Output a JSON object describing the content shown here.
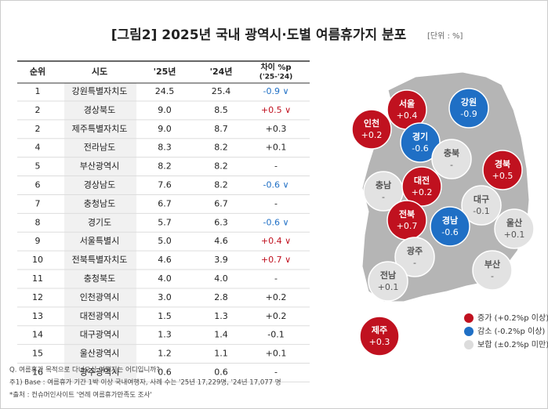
{
  "title": "[그림2] 2025년 국내 광역시·도별 여름휴가지 분포",
  "unit": "[단위 : %]",
  "table": {
    "header": [
      "순위",
      "시도",
      "'25년",
      "'24년"
    ],
    "diff_header": [
      "차이 %p",
      "('25-'24)"
    ],
    "rows": [
      [
        1,
        "강원특별자치도",
        "24.5",
        "25.4",
        "-0.9 ∨"
      ],
      [
        2,
        "경상북도",
        "9.0",
        "8.5",
        "+0.5 ∨"
      ],
      [
        2,
        "제주특별자치도",
        "9.0",
        "8.7",
        "+0.3"
      ],
      [
        4,
        "전라남도",
        "8.3",
        "8.2",
        "+0.1"
      ],
      [
        5,
        "부산광역시",
        "8.2",
        "8.2",
        "-"
      ],
      [
        6,
        "경상남도",
        "7.6",
        "8.2",
        "-0.6 ∨"
      ],
      [
        7,
        "충청남도",
        "6.7",
        "6.7",
        "-"
      ],
      [
        8,
        "경기도",
        "5.7",
        "6.3",
        "-0.6 ∨"
      ],
      [
        9,
        "서울특별시",
        "5.0",
        "4.6",
        "+0.4 ∨"
      ],
      [
        10,
        "전북특별자치도",
        "4.6",
        "3.9",
        "+0.7 ∨"
      ],
      [
        11,
        "충청북도",
        "4.0",
        "4.0",
        "-"
      ],
      [
        12,
        "인천광역시",
        "3.0",
        "2.8",
        "+0.2"
      ],
      [
        13,
        "대전광역시",
        "1.5",
        "1.3",
        "+0.2"
      ],
      [
        14,
        "대구광역시",
        "1.3",
        "1.4",
        "-0.1"
      ],
      [
        15,
        "울산광역시",
        "1.2",
        "1.1",
        "+0.1"
      ],
      [
        16,
        "광주광역시",
        "0.6",
        "0.6",
        "-"
      ]
    ],
    "diff_colors": [
      "#1f6fc5",
      "#c0111f",
      "#222222",
      "#222222",
      "#222222",
      "#1f6fc5",
      "#222222",
      "#1f6fc5",
      "#c0111f",
      "#c0111f",
      "#222222",
      "#222222",
      "#222222",
      "#222222",
      "#222222",
      "#222222"
    ]
  },
  "map": {
    "bubbles": [
      {
        "name": "서울",
        "value": "+0.4",
        "color": "#c0111f",
        "text_color": "#ffffff"
      },
      {
        "name": "강원",
        "value": "-0.9",
        "color": "#1f6fc5",
        "text_color": "#ffffff"
      },
      {
        "name": "인천",
        "value": "+0.2",
        "color": "#c0111f",
        "text_color": "#ffffff"
      },
      {
        "name": "경기",
        "value": "-0.6",
        "color": "#1f6fc5",
        "text_color": "#ffffff"
      },
      {
        "name": "충북",
        "value": "-",
        "color": "#e2e2e2",
        "text_color": "#555555"
      },
      {
        "name": "경북",
        "value": "+0.5",
        "color": "#c0111f",
        "text_color": "#ffffff"
      },
      {
        "name": "충남",
        "value": "-",
        "color": "#e2e2e2",
        "text_color": "#555555"
      },
      {
        "name": "대전",
        "value": "+0.2",
        "color": "#c0111f",
        "text_color": "#ffffff"
      },
      {
        "name": "대구",
        "value": "-0.1",
        "color": "#e2e2e2",
        "text_color": "#555555"
      },
      {
        "name": "전북",
        "value": "+0.7",
        "color": "#c0111f",
        "text_color": "#ffffff"
      },
      {
        "name": "경남",
        "value": "-0.6",
        "color": "#1f6fc5",
        "text_color": "#ffffff"
      },
      {
        "name": "울산",
        "value": "+0.1",
        "color": "#e2e2e2",
        "text_color": "#555555"
      },
      {
        "name": "광주",
        "value": "-",
        "color": "#e2e2e2",
        "text_color": "#555555"
      },
      {
        "name": "부산",
        "value": "-",
        "color": "#e2e2e2",
        "text_color": "#555555"
      },
      {
        "name": "전남",
        "value": "+0.1",
        "color": "#e2e2e2",
        "text_color": "#555555"
      },
      {
        "name": "제주",
        "value": "+0.3",
        "color": "#c0111f",
        "text_color": "#ffffff"
      }
    ],
    "legend": [
      {
        "label": "증가 (+0.2%p 이상)",
        "color": "#c0111f"
      },
      {
        "label": "감소 (-0.2%p 이상)",
        "color": "#1f6fc5"
      },
      {
        "label": "보합 (±0.2%p 미만)",
        "color": "#dcdcdc"
      }
    ]
  },
  "notes": [
    "Q. 여름휴가 목적으로 다녀오신 여행지는 어디입니까?",
    "주1) Base : 여름휴가 기간 1박 이상 국내여행자, 사례 수는 '25년 17,229명, '24년 17,077 명",
    "*출처 : 컨슈머인사이트 '연례 여름휴가만족도 조사'"
  ]
}
